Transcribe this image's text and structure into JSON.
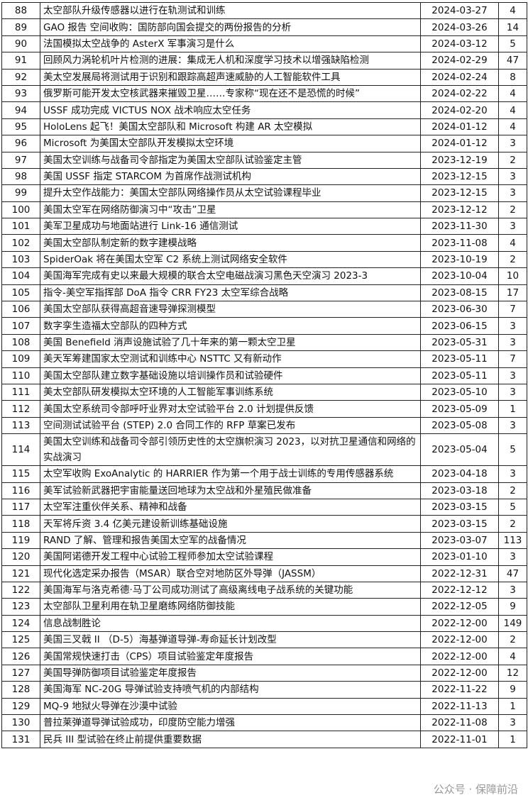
{
  "table": {
    "rows": [
      [
        "88",
        "太空部队升级传感器以进行在轨测试和训练",
        "2024-03-27",
        "4"
      ],
      [
        "89",
        "GAO 报告 空间收购：国防部向国会提交的两份报告的分析",
        "2024-03-26",
        "14"
      ],
      [
        "90",
        "法国模拟太空战争的 AsterX 军事演习是什么",
        "2024-03-12",
        "5"
      ],
      [
        "91",
        "回顾风力涡轮机叶片检测的进展：集成无人机和深度学习技术以增强缺陷检测",
        "2024-02-29",
        "47"
      ],
      [
        "92",
        "美太空发展局将测试用于识别和跟踪高超声速威胁的人工智能软件工具",
        "2024-02-24",
        "8"
      ],
      [
        "93",
        "俄罗斯可能开发太空核武器来摧毁卫星……专家称“现在还不是恐慌的时候”",
        "2024-02-22",
        "4"
      ],
      [
        "94",
        "USSF 成功完成 VICTUS NOX 战术响应太空任务",
        "2024-02-20",
        "4"
      ],
      [
        "95",
        "HoloLens 起飞！美国太空部队和 Microsoft 构建 AR 太空模拟",
        "2024-01-12",
        "4"
      ],
      [
        "96",
        "Microsoft 为美国太空部队开发模拟太空环境",
        "2024-01-12",
        "3"
      ],
      [
        "97",
        "美国太空训练与战备司令部指定为美国太空部队试验鉴定主管",
        "2023-12-19",
        "2"
      ],
      [
        "98",
        "美国 USSF 指定 STARCOM 为首席作战测试机构",
        "2023-12-15",
        "3"
      ],
      [
        "99",
        "提升太空作战能力：美国太空部队网络操作员从太空试验课程毕业",
        "2023-12-15",
        "3"
      ],
      [
        "100",
        "美国太空军在网络防御演习中“攻击”卫星",
        "2023-12-12",
        "2"
      ],
      [
        "101",
        "美军卫星成功与地面站进行 Link-16 通信测试",
        "2023-11-30",
        "3"
      ],
      [
        "102",
        "美国太空部队制定新的数字建模战略",
        "2023-11-08",
        "4"
      ],
      [
        "103",
        "SpiderOak 将在美国太空军 C2 系统上测试网络安全软件",
        "2023-10-19",
        "2"
      ],
      [
        "104",
        "美国海军完成有史以来最大规模的联合太空电磁战演习黑色天空演习 2023-3",
        "2023-10-04",
        "10"
      ],
      [
        "105",
        "指令-美空军指挥部 DoA 指令 CRR FY23 太空军综合战略",
        "2023-08-15",
        "17"
      ],
      [
        "106",
        "美国太空部队获得高超音速导弹探测模型",
        "2023-06-30",
        "7"
      ],
      [
        "107",
        "数字孪生造福太空部队的四种方式",
        "2023-06-15",
        "3"
      ],
      [
        "108",
        "美国 Benefield 消声设施试验了几十年来的第一颗太空卫星",
        "2023-05-31",
        "3"
      ],
      [
        "109",
        "美天军筹建国家太空测试和训练中心 NSTTC 又有新动作",
        "2023-05-11",
        "7"
      ],
      [
        "110",
        "美国太空部队建立数字基础设施以培训操作员和试验硬件",
        "2023-05-11",
        "3"
      ],
      [
        "111",
        "美太空部队研发模拟太空环境的人工智能军事训练系统",
        "2023-05-10",
        "3"
      ],
      [
        "112",
        "美国太空系统司令部呼吁业界对太空试验平台 2.0 计划提供反馈",
        "2023-05-09",
        "1"
      ],
      [
        "113",
        "空间测试试验平台 (STEP) 2.0 合同工作的 RFP 草案已发布",
        "2023-05-08",
        "3"
      ],
      [
        "114",
        "美国太空训练和战备司令部引领历史性的太空旗帜演习 2023，以对抗卫星通信和网络的实战演习",
        "2023-05-04",
        "5"
      ],
      [
        "115",
        "太空军收购 ExoAnalytic 的 HARRIER 作为第一个用于战士训练的专用传感器系统",
        "2023-04-18",
        "3"
      ],
      [
        "116",
        "美军试验新武器把宇宙能量送回地球为太空战和外星殖民做准备",
        "2023-03-18",
        "2"
      ],
      [
        "117",
        "太空军注重伙伴关系、精神和战备",
        "2023-03-15",
        "5"
      ],
      [
        "118",
        "天军将斥资 3.4 亿美元建设新训练基础设施",
        "2023-03-15",
        "2"
      ],
      [
        "119",
        "RAND 了解、管理和报告美国太空军的战备情况",
        "2023-03-07",
        "113"
      ],
      [
        "120",
        "美国阿诺德开发工程中心试验工程师参加太空试验课程",
        "2023-01-10",
        "3"
      ],
      [
        "121",
        "现代化选定采办报告（MSAR）联合空对地防区外导弹（JASSM）",
        "2022-12-31",
        "47"
      ],
      [
        "122",
        "美国海军与洛克希德·马丁公司成功测试了高级离线电子战系统的关键功能",
        "2022-12-12",
        "3"
      ],
      [
        "123",
        "太空部队卫星利用在轨卫星磨练网络防御技能",
        "2022-12-05",
        "9"
      ],
      [
        "124",
        "信息战制胜论",
        "2022-12-00",
        "149"
      ],
      [
        "125",
        "美国三叉戟 II （D-5）海基弹道导弹-寿命延长计划改型",
        "2022-12-00",
        "2"
      ],
      [
        "126",
        "美国常规快速打击（CPS）项目试验鉴定年度报告",
        "2022-12-00",
        "4"
      ],
      [
        "127",
        "美国导弹防御项目试验鉴定年度报告",
        "2022-12-00",
        "12"
      ],
      [
        "128",
        "美国海军 NC-20G 导弹试验支持喷气机的内部结构",
        "2022-11-22",
        "9"
      ],
      [
        "129",
        "MQ-9 地狱火导弹在沙漠中试验",
        "2022-11-13",
        "1"
      ],
      [
        "130",
        "普拉莱弹道导弹试验成功，印度防空能力增强",
        "2022-11-08",
        "3"
      ],
      [
        "131",
        "民兵 III 型试验在终止前提供重要数据",
        "2022-11-01",
        "1"
      ]
    ]
  },
  "watermark": "公众号 · 保障前沿"
}
